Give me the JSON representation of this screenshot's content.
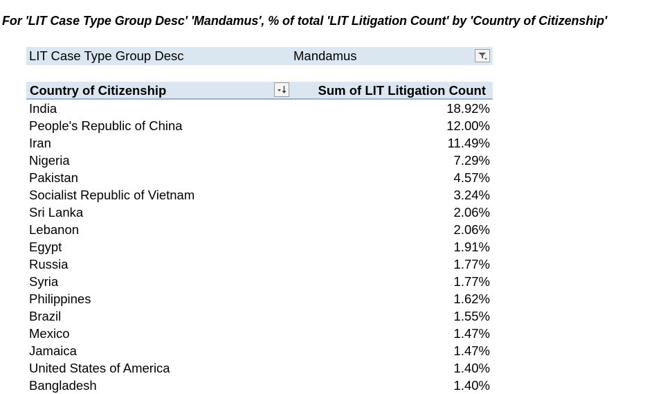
{
  "title": "For 'LIT Case Type Group Desc' 'Mandamus', % of total 'LIT Litigation Count' by 'Country of Citizenship'",
  "filter": {
    "label": "LIT Case Type Group Desc",
    "value": "Mandamus",
    "icon": "filter-dropdown-icon"
  },
  "table": {
    "headers": {
      "country": "Country of Citizenship",
      "sum": "Sum of LIT Litigation Count",
      "sort_icon": "sort-descending-icon"
    },
    "rows": [
      {
        "country": "India",
        "pct": "18.92%"
      },
      {
        "country": "People's Republic of China",
        "pct": "12.00%"
      },
      {
        "country": "Iran",
        "pct": "11.49%"
      },
      {
        "country": "Nigeria",
        "pct": "7.29%"
      },
      {
        "country": "Pakistan",
        "pct": "4.57%"
      },
      {
        "country": "Socialist Republic of Vietnam",
        "pct": "3.24%"
      },
      {
        "country": "Sri Lanka",
        "pct": "2.06%"
      },
      {
        "country": "Lebanon",
        "pct": "2.06%"
      },
      {
        "country": "Egypt",
        "pct": "1.91%"
      },
      {
        "country": "Russia",
        "pct": "1.77%"
      },
      {
        "country": "Syria",
        "pct": "1.77%"
      },
      {
        "country": "Philippines",
        "pct": "1.62%"
      },
      {
        "country": "Brazil",
        "pct": "1.55%"
      },
      {
        "country": "Mexico",
        "pct": "1.47%"
      },
      {
        "country": "Jamaica",
        "pct": "1.47%"
      },
      {
        "country": "United States of America",
        "pct": "1.40%"
      },
      {
        "country": "Bangladesh",
        "pct": "1.40%"
      }
    ]
  },
  "colors": {
    "header_bg": "#dce6f1",
    "header_border": "#95b3d7"
  }
}
